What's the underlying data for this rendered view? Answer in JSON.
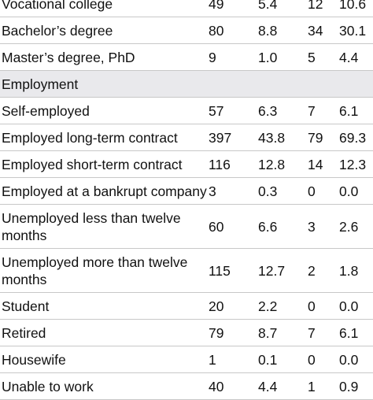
{
  "table": {
    "rows": [
      {
        "kind": "data",
        "label": "Vocational college",
        "n1": "49",
        "p1": "5.4",
        "n2": "12",
        "p2": "10.6"
      },
      {
        "kind": "data",
        "label": "Bachelor’s degree",
        "n1": "80",
        "p1": "8.8",
        "n2": "34",
        "p2": "30.1"
      },
      {
        "kind": "data",
        "label": "Master’s degree, PhD",
        "n1": "9",
        "p1": "1.0",
        "n2": "5",
        "p2": "4.4"
      },
      {
        "kind": "section",
        "label": "Employment"
      },
      {
        "kind": "data",
        "label": "Self-employed",
        "n1": "57",
        "p1": "6.3",
        "n2": "7",
        "p2": "6.1"
      },
      {
        "kind": "data",
        "label": "Employed long-term contract",
        "n1": "397",
        "p1": "43.8",
        "n2": "79",
        "p2": "69.3"
      },
      {
        "kind": "data",
        "label": "Employed short-term contract",
        "n1": "116",
        "p1": "12.8",
        "n2": "14",
        "p2": "12.3"
      },
      {
        "kind": "data",
        "label": "Employed at a bankrupt company",
        "n1": "3",
        "p1": "0.3",
        "n2": "0",
        "p2": "0.0"
      },
      {
        "kind": "data",
        "wrap": true,
        "label": "Unemployed less than twelve months",
        "n1": "60",
        "p1": "6.6",
        "n2": "3",
        "p2": "2.6"
      },
      {
        "kind": "data",
        "wrap": true,
        "label": "Unemployed more than twelve months",
        "n1": "115",
        "p1": "12.7",
        "n2": "2",
        "p2": "1.8"
      },
      {
        "kind": "data",
        "label": "Student",
        "n1": "20",
        "p1": "2.2",
        "n2": "0",
        "p2": "0.0"
      },
      {
        "kind": "data",
        "label": "Retired",
        "n1": "79",
        "p1": "8.7",
        "n2": "7",
        "p2": "6.1"
      },
      {
        "kind": "data",
        "label": "Housewife",
        "n1": "1",
        "p1": "0.1",
        "n2": "0",
        "p2": "0.0"
      },
      {
        "kind": "data",
        "label": "Unable to work",
        "n1": "40",
        "p1": "4.4",
        "n2": "1",
        "p2": "0.9"
      }
    ]
  }
}
